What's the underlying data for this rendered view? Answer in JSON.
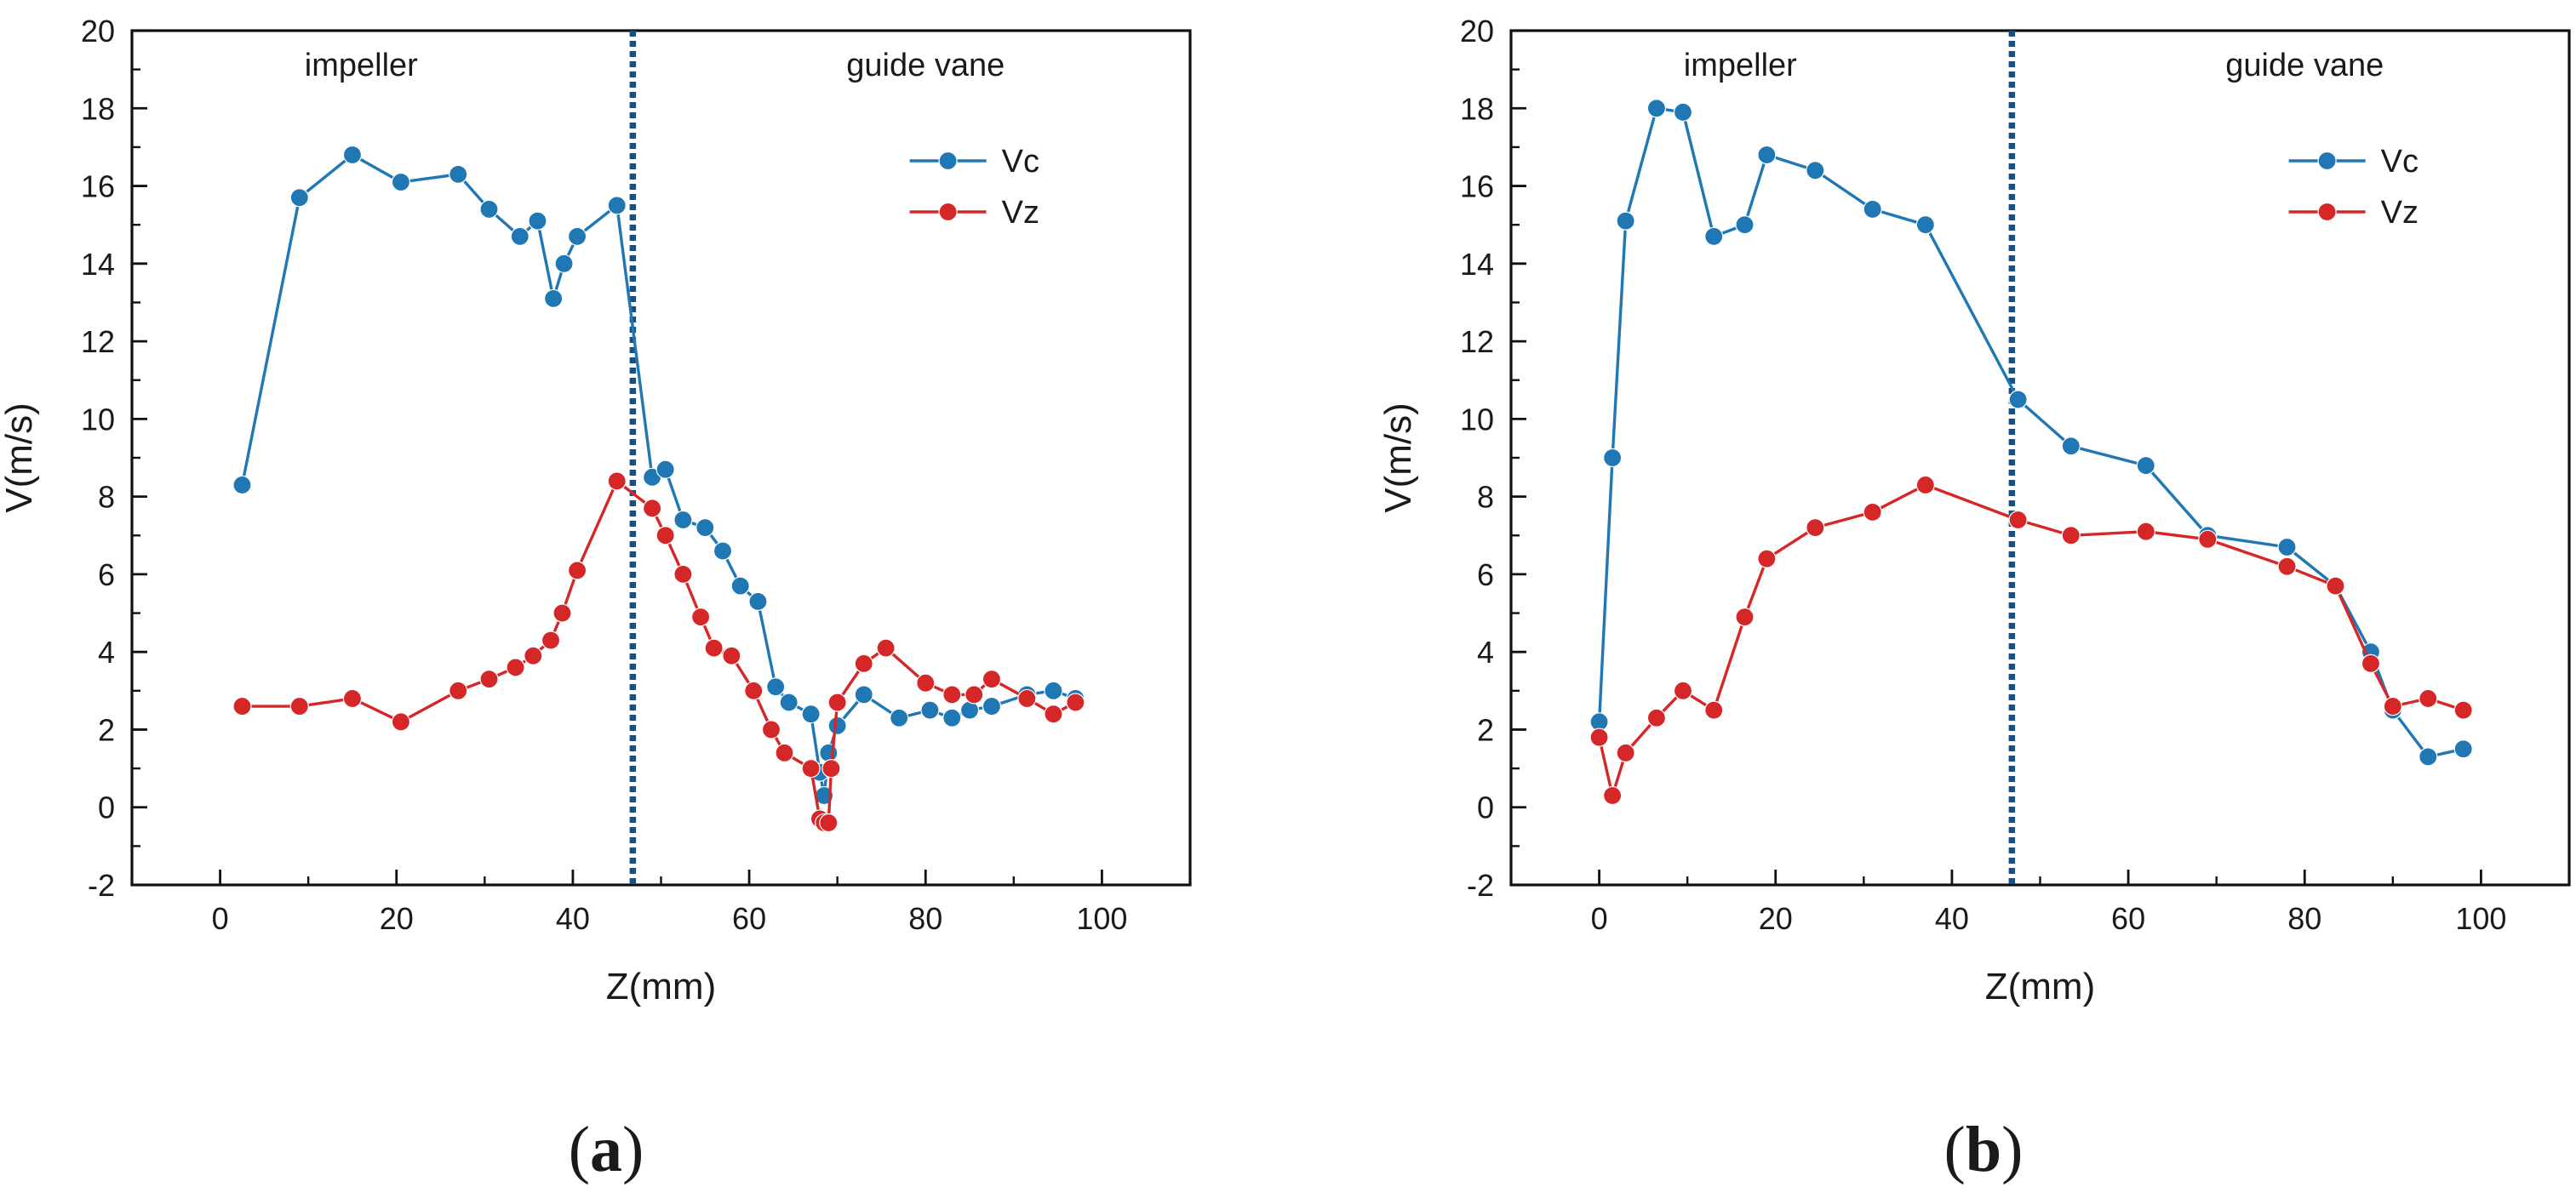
{
  "figure": {
    "panels": [
      {
        "letter": "a",
        "open": "(",
        "close": ")"
      },
      {
        "letter": "b",
        "open": "(",
        "close": ")"
      }
    ]
  },
  "chart_data": [
    {
      "type": "line",
      "panel": "a",
      "xlabel": "Z(mm)",
      "ylabel": "V(m/s)",
      "xlim": [
        -10,
        110
      ],
      "ylim": [
        -2,
        20
      ],
      "xticks": [
        0,
        20,
        40,
        60,
        80,
        100
      ],
      "yticks": [
        -2,
        0,
        2,
        4,
        6,
        8,
        10,
        12,
        14,
        16,
        18,
        20
      ],
      "legend_position": "top-right",
      "annotations": [
        {
          "text": "impeller",
          "x": 16,
          "y": 19.1
        },
        {
          "text": "guide vane",
          "x": 80,
          "y": 19.1
        }
      ],
      "vline": {
        "x": 46.8,
        "style": "dotted",
        "color": "#1f4e79"
      },
      "series": [
        {
          "name": "Vc",
          "color": "#1f77b4",
          "x": [
            2.5,
            9,
            15,
            20.5,
            27,
            30.5,
            34,
            36,
            37.8,
            39,
            40.5,
            45,
            49,
            50.5,
            52.5,
            55,
            57,
            59,
            61,
            63,
            64.5,
            67,
            68,
            68.5,
            69,
            70,
            73,
            77,
            80.5,
            83,
            85,
            87.5,
            91.5,
            94.5,
            97
          ],
          "y": [
            8.3,
            15.7,
            16.8,
            16.1,
            16.3,
            15.4,
            14.7,
            15.1,
            13.1,
            14.0,
            14.7,
            15.5,
            8.5,
            8.7,
            7.4,
            7.2,
            6.6,
            5.7,
            5.3,
            3.1,
            2.7,
            2.4,
            0.9,
            0.3,
            1.4,
            2.1,
            2.9,
            2.3,
            2.5,
            2.3,
            2.5,
            2.6,
            2.9,
            3.0,
            2.8
          ]
        },
        {
          "name": "Vz",
          "color": "#d62728",
          "x": [
            2.5,
            9,
            15,
            20.5,
            27,
            30.5,
            33.5,
            35.5,
            37.5,
            38.8,
            40.5,
            45,
            49,
            50.5,
            52.5,
            54.5,
            56,
            58,
            60.5,
            62.5,
            64,
            67,
            68,
            68.5,
            69,
            69.3,
            70,
            73,
            75.5,
            80,
            83,
            85.5,
            87.5,
            91.5,
            94.5,
            97
          ],
          "y": [
            2.6,
            2.6,
            2.8,
            2.2,
            3.0,
            3.3,
            3.6,
            3.9,
            4.3,
            5.0,
            6.1,
            8.4,
            7.7,
            7.0,
            6.0,
            4.9,
            4.1,
            3.9,
            3.0,
            2.0,
            1.4,
            1.0,
            -0.3,
            -0.4,
            -0.4,
            1.0,
            2.7,
            3.7,
            4.1,
            3.2,
            2.9,
            2.9,
            3.3,
            2.8,
            2.4,
            2.7
          ]
        }
      ]
    },
    {
      "type": "line",
      "panel": "b",
      "xlabel": "Z(mm)",
      "ylabel": "V(m/s)",
      "xlim": [
        -10,
        110
      ],
      "ylim": [
        -2,
        20
      ],
      "xticks": [
        0,
        20,
        40,
        60,
        80,
        100
      ],
      "yticks": [
        -2,
        0,
        2,
        4,
        6,
        8,
        10,
        12,
        14,
        16,
        18,
        20
      ],
      "legend_position": "top-right",
      "annotations": [
        {
          "text": "impeller",
          "x": 16,
          "y": 19.1
        },
        {
          "text": "guide vane",
          "x": 80,
          "y": 19.1
        }
      ],
      "vline": {
        "x": 46.8,
        "style": "dotted",
        "color": "#1f4e79"
      },
      "series": [
        {
          "name": "Vc",
          "color": "#1f77b4",
          "x": [
            0,
            1.5,
            3,
            6.5,
            9.5,
            13,
            16.5,
            19,
            24.5,
            31,
            37,
            47.5,
            53.5,
            62,
            69,
            78,
            83.5,
            87.5,
            90,
            94,
            98
          ],
          "y": [
            2.2,
            9.0,
            15.1,
            18.0,
            17.9,
            14.7,
            15.0,
            16.8,
            16.4,
            15.4,
            15.0,
            10.5,
            9.3,
            8.8,
            7.0,
            6.7,
            5.7,
            4.0,
            2.5,
            1.3,
            1.5
          ]
        },
        {
          "name": "Vz",
          "color": "#d62728",
          "x": [
            0,
            1.5,
            3,
            6.5,
            9.5,
            13,
            16.5,
            19,
            24.5,
            31,
            37,
            47.5,
            53.5,
            62,
            69,
            78,
            83.5,
            87.5,
            90,
            94,
            98
          ],
          "y": [
            1.8,
            0.3,
            1.4,
            2.3,
            3.0,
            2.5,
            4.9,
            6.4,
            7.2,
            7.6,
            8.3,
            7.4,
            7.0,
            7.1,
            6.9,
            6.2,
            5.7,
            3.7,
            2.6,
            2.8,
            2.5
          ]
        }
      ]
    }
  ]
}
